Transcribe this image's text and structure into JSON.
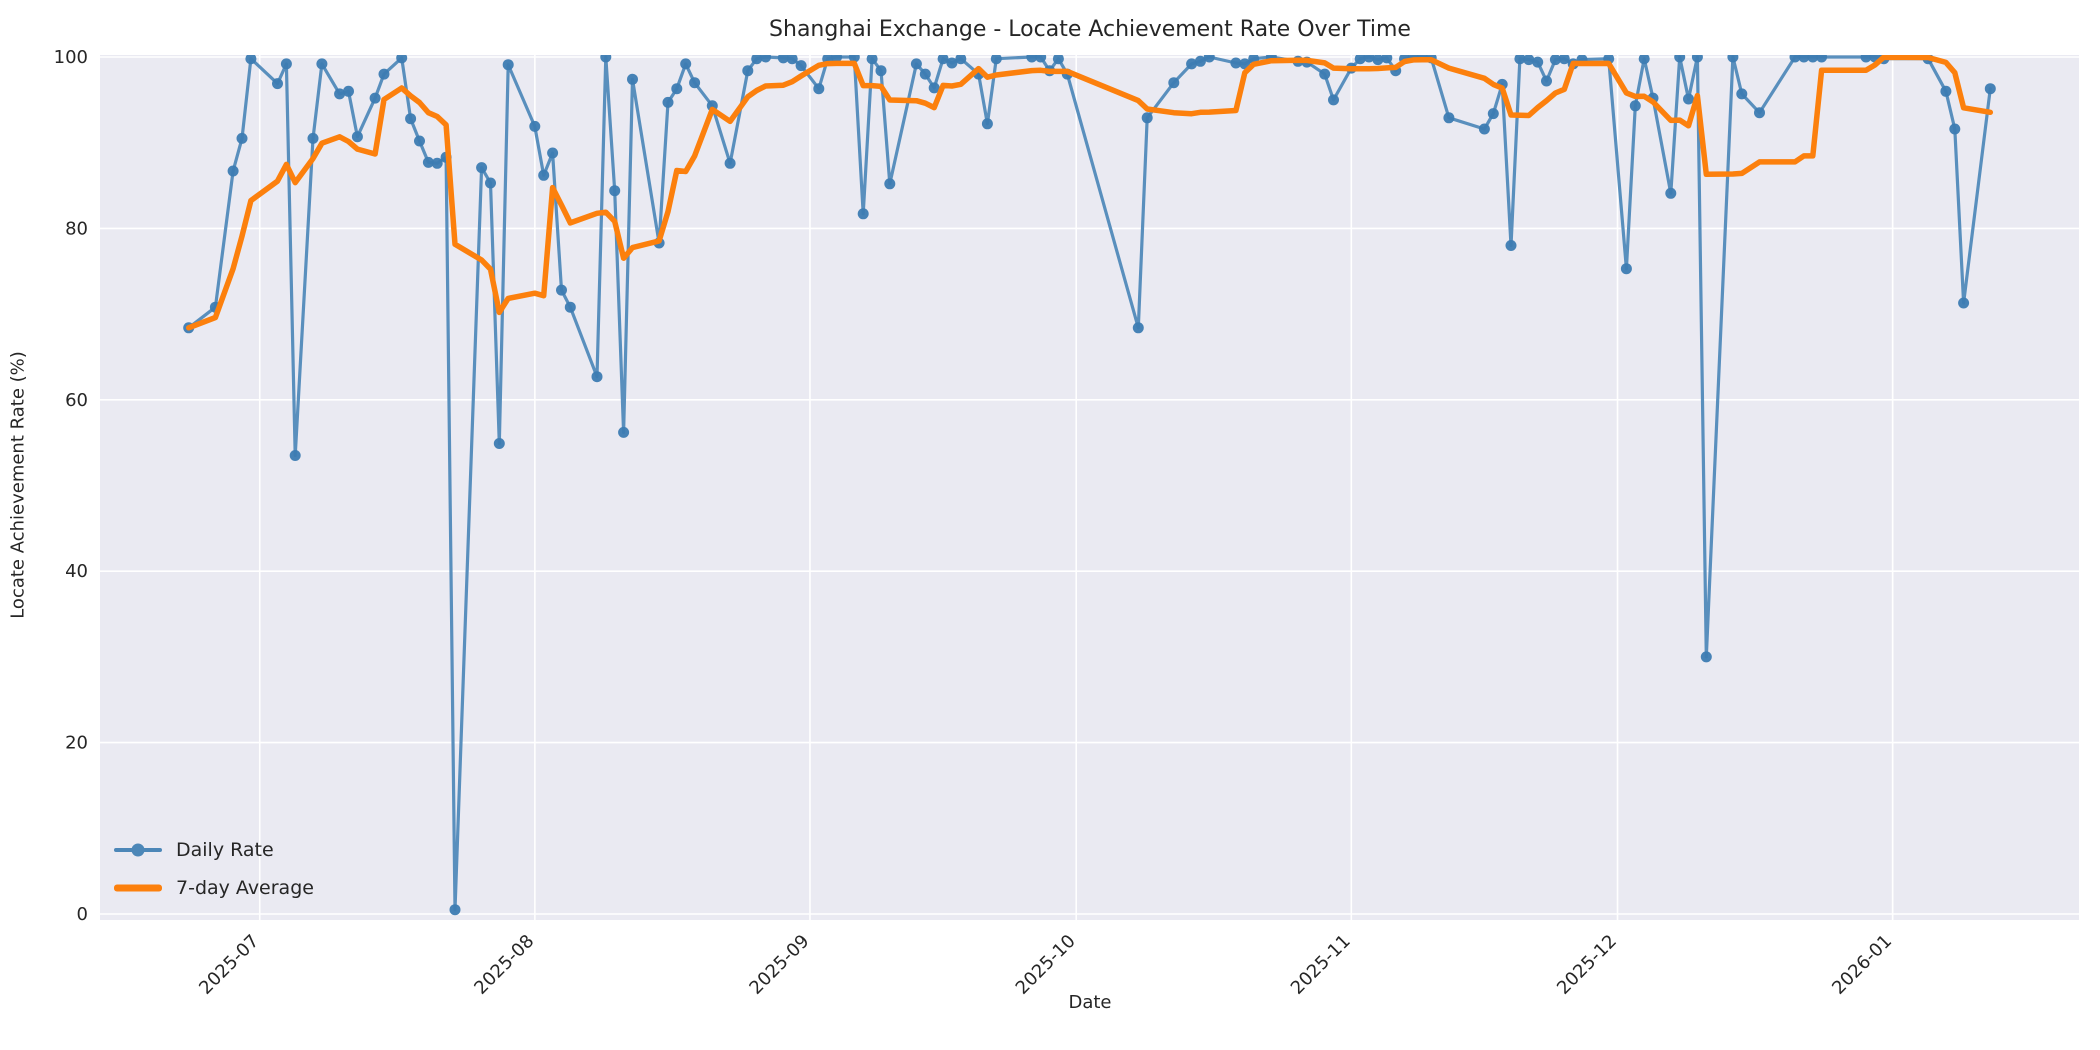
{
  "figure": {
    "title": "Shanghai Exchange - Locate Achievement Rate Over Time",
    "xlabel": "Date",
    "ylabel": "Locate Achievement Rate (%)",
    "background_color": "#ffffff",
    "plot_background_color": "#eaeaf2",
    "grid_color": "#ffffff",
    "text_color": "#262626"
  },
  "legend": {
    "entries": [
      {
        "label": "Daily Rate",
        "color": "#4c87b8",
        "style": "line-with-marker"
      },
      {
        "label": "7-day Average",
        "color": "#fc800d",
        "style": "thick-line"
      }
    ]
  },
  "chart_data": {
    "type": "line",
    "title": "Shanghai Exchange - Locate Achievement Rate Over Time",
    "xlabel": "Date",
    "ylabel": "Locate Achievement Rate (%)",
    "ylim": [
      0,
      100
    ],
    "xlim": [
      "2025-06-13",
      "2026-01-22"
    ],
    "grid": true,
    "legend_position": "lower-left",
    "y_ticks": [
      0,
      20,
      40,
      60,
      80,
      100
    ],
    "x_ticks": [
      {
        "date": "2025-07-01",
        "label": "2025-07"
      },
      {
        "date": "2025-08-01",
        "label": "2025-08"
      },
      {
        "date": "2025-09-01",
        "label": "2025-09"
      },
      {
        "date": "2025-10-01",
        "label": "2025-10"
      },
      {
        "date": "2025-11-01",
        "label": "2025-11"
      },
      {
        "date": "2025-12-01",
        "label": "2025-12"
      },
      {
        "date": "2026-01-01",
        "label": "2026-01"
      }
    ],
    "series": [
      {
        "name": "Daily Rate",
        "color": "#4c87b8",
        "marker_color": "#3d7cb2",
        "line_width": 3.2,
        "marker_radius": 5.5,
        "points": [
          [
            "2025-06-23",
            68.4
          ],
          [
            "2025-06-26",
            70.8
          ],
          [
            "2025-06-28",
            86.7
          ],
          [
            "2025-06-29",
            90.5
          ],
          [
            "2025-06-30",
            99.8
          ],
          [
            "2025-07-03",
            96.9
          ],
          [
            "2025-07-04",
            99.2
          ],
          [
            "2025-07-05",
            53.5
          ],
          [
            "2025-07-07",
            90.5
          ],
          [
            "2025-07-08",
            99.2
          ],
          [
            "2025-07-10",
            95.7
          ],
          [
            "2025-07-11",
            96.0
          ],
          [
            "2025-07-12",
            90.7
          ],
          [
            "2025-07-14",
            95.2
          ],
          [
            "2025-07-15",
            98.0
          ],
          [
            "2025-07-17",
            99.9
          ],
          [
            "2025-07-18",
            92.8
          ],
          [
            "2025-07-19",
            90.2
          ],
          [
            "2025-07-20",
            87.7
          ],
          [
            "2025-07-21",
            87.6
          ],
          [
            "2025-07-22",
            88.3
          ],
          [
            "2025-07-23",
            0.5
          ],
          [
            "2025-07-26",
            87.1
          ],
          [
            "2025-07-27",
            85.3
          ],
          [
            "2025-07-28",
            54.9
          ],
          [
            "2025-07-29",
            99.1
          ],
          [
            "2025-08-01",
            91.9
          ],
          [
            "2025-08-02",
            86.2
          ],
          [
            "2025-08-03",
            88.8
          ],
          [
            "2025-08-04",
            72.8
          ],
          [
            "2025-08-05",
            70.8
          ],
          [
            "2025-08-08",
            62.7
          ],
          [
            "2025-08-09",
            100
          ],
          [
            "2025-08-10",
            84.4
          ],
          [
            "2025-08-11",
            56.2
          ],
          [
            "2025-08-12",
            97.4
          ],
          [
            "2025-08-15",
            78.3
          ],
          [
            "2025-08-16",
            94.7
          ],
          [
            "2025-08-17",
            96.3
          ],
          [
            "2025-08-18",
            99.2
          ],
          [
            "2025-08-19",
            97.0
          ],
          [
            "2025-08-21",
            94.3
          ],
          [
            "2025-08-23",
            87.6
          ],
          [
            "2025-08-25",
            98.4
          ],
          [
            "2025-08-26",
            99.8
          ],
          [
            "2025-08-27",
            100
          ],
          [
            "2025-08-29",
            99.9
          ],
          [
            "2025-08-30",
            99.8
          ],
          [
            "2025-08-31",
            99.0
          ],
          [
            "2025-09-02",
            96.3
          ],
          [
            "2025-09-03",
            99.8
          ],
          [
            "2025-09-04",
            100
          ],
          [
            "2025-09-06",
            100
          ],
          [
            "2025-09-07",
            81.7
          ],
          [
            "2025-09-08",
            99.8
          ],
          [
            "2025-09-09",
            98.4
          ],
          [
            "2025-09-10",
            85.2
          ],
          [
            "2025-09-13",
            99.2
          ],
          [
            "2025-09-14",
            98.0
          ],
          [
            "2025-09-15",
            96.4
          ],
          [
            "2025-09-16",
            99.8
          ],
          [
            "2025-09-17",
            99.3
          ],
          [
            "2025-09-18",
            99.8
          ],
          [
            "2025-09-20",
            98.0
          ],
          [
            "2025-09-21",
            92.2
          ],
          [
            "2025-09-22",
            99.8
          ],
          [
            "2025-09-26",
            100
          ],
          [
            "2025-09-27",
            100
          ],
          [
            "2025-09-28",
            98.4
          ],
          [
            "2025-09-29",
            99.8
          ],
          [
            "2025-09-30",
            98.0
          ],
          [
            "2025-10-08",
            68.4
          ],
          [
            "2025-10-09",
            92.9
          ],
          [
            "2025-10-12",
            97.0
          ],
          [
            "2025-10-14",
            99.2
          ],
          [
            "2025-10-15",
            99.5
          ],
          [
            "2025-10-16",
            100
          ],
          [
            "2025-10-19",
            99.3
          ],
          [
            "2025-10-20",
            99.2
          ],
          [
            "2025-10-21",
            99.8
          ],
          [
            "2025-10-23",
            100
          ],
          [
            "2025-10-26",
            99.5
          ],
          [
            "2025-10-27",
            99.4
          ],
          [
            "2025-10-29",
            98.0
          ],
          [
            "2025-10-30",
            95.0
          ],
          [
            "2025-11-01",
            98.7
          ],
          [
            "2025-11-02",
            99.8
          ],
          [
            "2025-11-03",
            100
          ],
          [
            "2025-11-04",
            99.7
          ],
          [
            "2025-11-05",
            99.9
          ],
          [
            "2025-11-06",
            98.4
          ],
          [
            "2025-11-07",
            99.8
          ],
          [
            "2025-11-08",
            100
          ],
          [
            "2025-11-09",
            100
          ],
          [
            "2025-11-10",
            99.9
          ],
          [
            "2025-11-12",
            92.9
          ],
          [
            "2025-11-16",
            91.6
          ],
          [
            "2025-11-17",
            93.4
          ],
          [
            "2025-11-18",
            96.8
          ],
          [
            "2025-11-19",
            78.0
          ],
          [
            "2025-11-20",
            99.8
          ],
          [
            "2025-11-21",
            99.7
          ],
          [
            "2025-11-22",
            99.4
          ],
          [
            "2025-11-23",
            97.2
          ],
          [
            "2025-11-24",
            99.7
          ],
          [
            "2025-11-25",
            99.8
          ],
          [
            "2025-11-26",
            99.2
          ],
          [
            "2025-11-27",
            99.7
          ],
          [
            "2025-11-30",
            99.8
          ],
          [
            "2025-12-02",
            75.3
          ],
          [
            "2025-12-03",
            94.3
          ],
          [
            "2025-12-04",
            99.8
          ],
          [
            "2025-12-05",
            95.2
          ],
          [
            "2025-12-07",
            84.1
          ],
          [
            "2025-12-08",
            100
          ],
          [
            "2025-12-09",
            95.1
          ],
          [
            "2025-12-10",
            100
          ],
          [
            "2025-12-11",
            30.0
          ],
          [
            "2025-12-14",
            100
          ],
          [
            "2025-12-15",
            95.7
          ],
          [
            "2025-12-17",
            93.5
          ],
          [
            "2025-12-21",
            100
          ],
          [
            "2025-12-22",
            100
          ],
          [
            "2025-12-23",
            100
          ],
          [
            "2025-12-24",
            100
          ],
          [
            "2025-12-29",
            100
          ],
          [
            "2025-12-30",
            100
          ],
          [
            "2025-12-31",
            99.8
          ],
          [
            "2026-01-05",
            99.8
          ],
          [
            "2026-01-07",
            96.0
          ],
          [
            "2026-01-08",
            91.6
          ],
          [
            "2026-01-09",
            71.3
          ],
          [
            "2026-01-12",
            96.3
          ]
        ]
      },
      {
        "name": "7-day Average",
        "color": "#fc800d",
        "line_width": 5.5,
        "derived": "rolling_mean_window_7_of_daily_rate"
      }
    ]
  }
}
